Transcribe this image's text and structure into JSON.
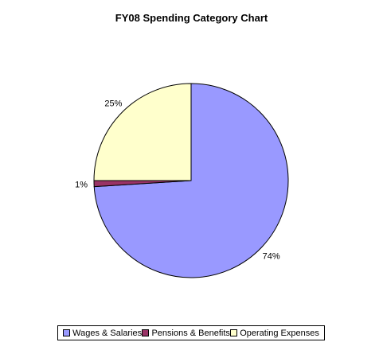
{
  "chart_data": {
    "type": "pie",
    "title": "FY08 Spending Category Chart",
    "slices": [
      {
        "name": "Wages & Salaries",
        "value": 74,
        "label": "74%",
        "color": "#9999ff"
      },
      {
        "name": "Pensions & Benefits",
        "value": 1,
        "label": "1%",
        "color": "#993366"
      },
      {
        "name": "Operating Expenses",
        "value": 25,
        "label": "25%",
        "color": "#ffffcc"
      }
    ],
    "legend_position": "bottom"
  }
}
